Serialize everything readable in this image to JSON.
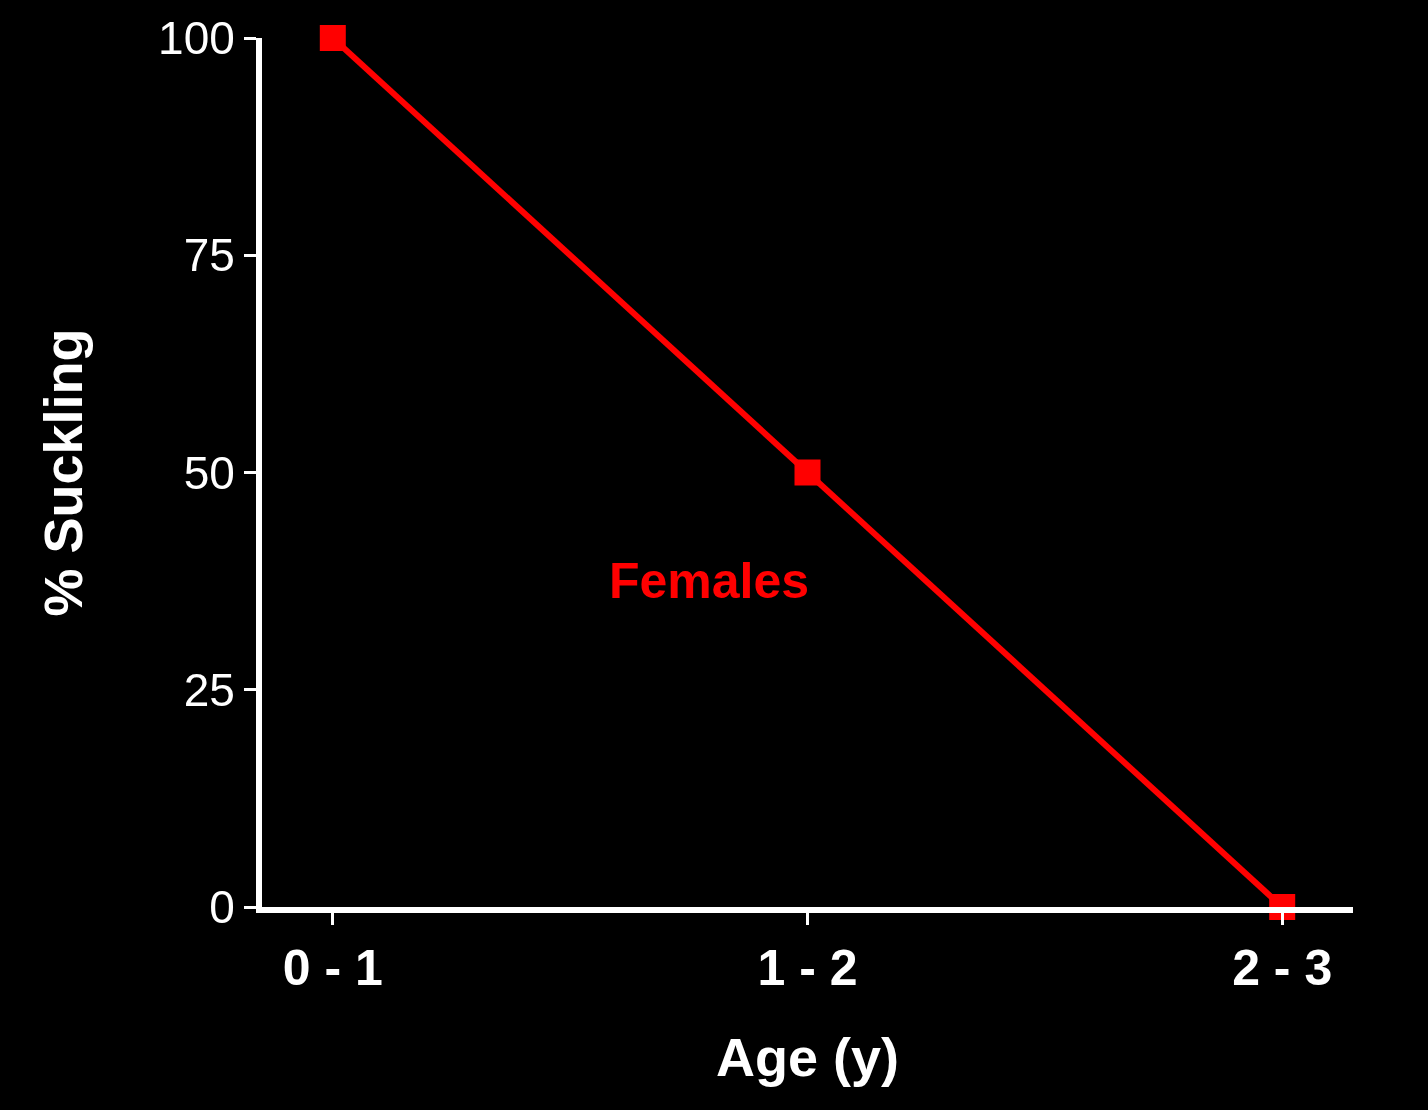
{
  "chart_data": {
    "type": "line",
    "xlabel": "Age (y)",
    "ylabel": "% Suckling",
    "categories": [
      "0 - 1",
      "1 - 2",
      "2 - 3"
    ],
    "series": [
      {
        "name": "Females",
        "color": "#ff0000",
        "values": [
          100,
          50,
          0
        ]
      }
    ],
    "ylim": [
      0,
      100
    ],
    "yticks": [
      0,
      25,
      50,
      75,
      100
    ],
    "grid": false,
    "legend": false,
    "marker": "square",
    "line_style": "solid"
  }
}
